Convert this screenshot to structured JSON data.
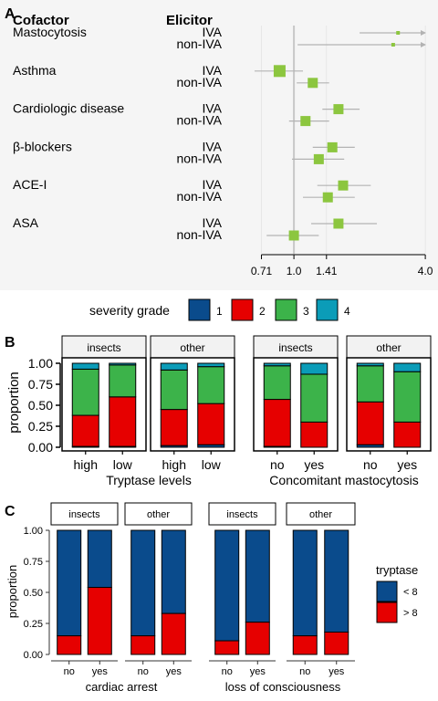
{
  "panelA": {
    "letter": "A",
    "header_cofactor": "Cofactor",
    "header_elicitor": "Elicitor",
    "ticks": [
      "0.71",
      "1.0",
      "1.41",
      "4.0"
    ],
    "tick_values": [
      0.71,
      1.0,
      1.41,
      4.0
    ],
    "xlim": [
      0.55,
      4.4
    ],
    "reference": 1.0,
    "chart_data": {
      "type": "scatter",
      "scale": "log",
      "rows": [
        {
          "cofactor": "Mastocytosis",
          "elicitor": "IVA",
          "estimate": 3.0,
          "lower": 2.0,
          "upper": 4.4,
          "arrow": true
        },
        {
          "cofactor": "",
          "elicitor": "non-IVA",
          "estimate": 2.85,
          "lower": 1.04,
          "upper": 4.4,
          "arrow": true
        },
        {
          "cofactor": "Asthma",
          "elicitor": "IVA",
          "estimate": 0.86,
          "lower": 0.66,
          "upper": 1.1
        },
        {
          "cofactor": "",
          "elicitor": "non-IVA",
          "estimate": 1.22,
          "lower": 1.03,
          "upper": 1.45
        },
        {
          "cofactor": "Cardiologic disease",
          "elicitor": "IVA",
          "estimate": 1.6,
          "lower": 1.35,
          "upper": 2.0
        },
        {
          "cofactor": "",
          "elicitor": "non-IVA",
          "estimate": 1.13,
          "lower": 0.95,
          "upper": 1.45
        },
        {
          "cofactor": "β-blockers",
          "elicitor": "IVA",
          "estimate": 1.5,
          "lower": 1.22,
          "upper": 1.9
        },
        {
          "cofactor": "",
          "elicitor": "non-IVA",
          "estimate": 1.3,
          "lower": 0.98,
          "upper": 1.7
        },
        {
          "cofactor": "ACE-I",
          "elicitor": "IVA",
          "estimate": 1.68,
          "lower": 1.28,
          "upper": 2.25
        },
        {
          "cofactor": "",
          "elicitor": "non-IVA",
          "estimate": 1.43,
          "lower": 1.1,
          "upper": 1.9
        },
        {
          "cofactor": "ASA",
          "elicitor": "IVA",
          "estimate": 1.6,
          "lower": 1.2,
          "upper": 2.4
        },
        {
          "cofactor": "",
          "elicitor": "non-IVA",
          "estimate": 1.0,
          "lower": 0.75,
          "upper": 1.3
        }
      ]
    }
  },
  "legend": {
    "title": "severity grade",
    "items": [
      {
        "label": "1",
        "color": "#0a4b8c"
      },
      {
        "label": "2",
        "color": "#e60000"
      },
      {
        "label": "3",
        "color": "#3cb34a"
      },
      {
        "label": "4",
        "color": "#0b9cb8"
      }
    ]
  },
  "panelB": {
    "letter": "B",
    "ylabel": "proportion",
    "yticks": [
      "0.00",
      "0.25",
      "0.50",
      "0.75",
      "1.00"
    ],
    "groups": [
      {
        "xlabel": "Tryptase levels",
        "facets": [
          {
            "label": "insects",
            "categories": [
              "high",
              "low"
            ],
            "bars": [
              [
                0.01,
                0.37,
                0.55,
                0.07
              ],
              [
                0.01,
                0.59,
                0.38,
                0.02
              ]
            ]
          },
          {
            "label": "other",
            "categories": [
              "high",
              "low"
            ],
            "bars": [
              [
                0.02,
                0.43,
                0.47,
                0.08
              ],
              [
                0.03,
                0.49,
                0.44,
                0.04
              ]
            ]
          }
        ]
      },
      {
        "xlabel": "Concomitant mastocytosis",
        "facets": [
          {
            "label": "insects",
            "categories": [
              "no",
              "yes"
            ],
            "bars": [
              [
                0.01,
                0.56,
                0.4,
                0.03
              ],
              [
                0.0,
                0.3,
                0.57,
                0.13
              ]
            ]
          },
          {
            "label": "other",
            "categories": [
              "no",
              "yes"
            ],
            "bars": [
              [
                0.03,
                0.51,
                0.43,
                0.03
              ],
              [
                0.0,
                0.3,
                0.6,
                0.1
              ]
            ]
          }
        ]
      }
    ]
  },
  "panelC": {
    "letter": "C",
    "ylabel": "proportion",
    "yticks": [
      "0.00",
      "0.25",
      "0.50",
      "0.75",
      "1.00"
    ],
    "legend_title": "tryptase",
    "legend_items": [
      {
        "label": "< 8",
        "color": "#0a4b8c"
      },
      {
        "label": "> 8",
        "color": "#e60000"
      }
    ],
    "groups": [
      {
        "xlabel": "cardiac arrest",
        "facets": [
          {
            "label": "insects",
            "categories": [
              "no",
              "yes"
            ],
            "high": [
              0.15,
              0.54
            ]
          },
          {
            "label": "other",
            "categories": [
              "no",
              "yes"
            ],
            "high": [
              0.15,
              0.33
            ]
          }
        ]
      },
      {
        "xlabel": "loss of consciousness",
        "facets": [
          {
            "label": "insects",
            "categories": [
              "no",
              "yes"
            ],
            "high": [
              0.11,
              0.26
            ]
          },
          {
            "label": "other",
            "categories": [
              "no",
              "yes"
            ],
            "high": [
              0.15,
              0.18
            ]
          }
        ]
      }
    ]
  },
  "colors": {
    "forest_marker": "#8cc63f",
    "ci_line": "#b3b3b3",
    "strip_bg": "#f2f2f2",
    "panel_bg": "#f5f5f5"
  }
}
